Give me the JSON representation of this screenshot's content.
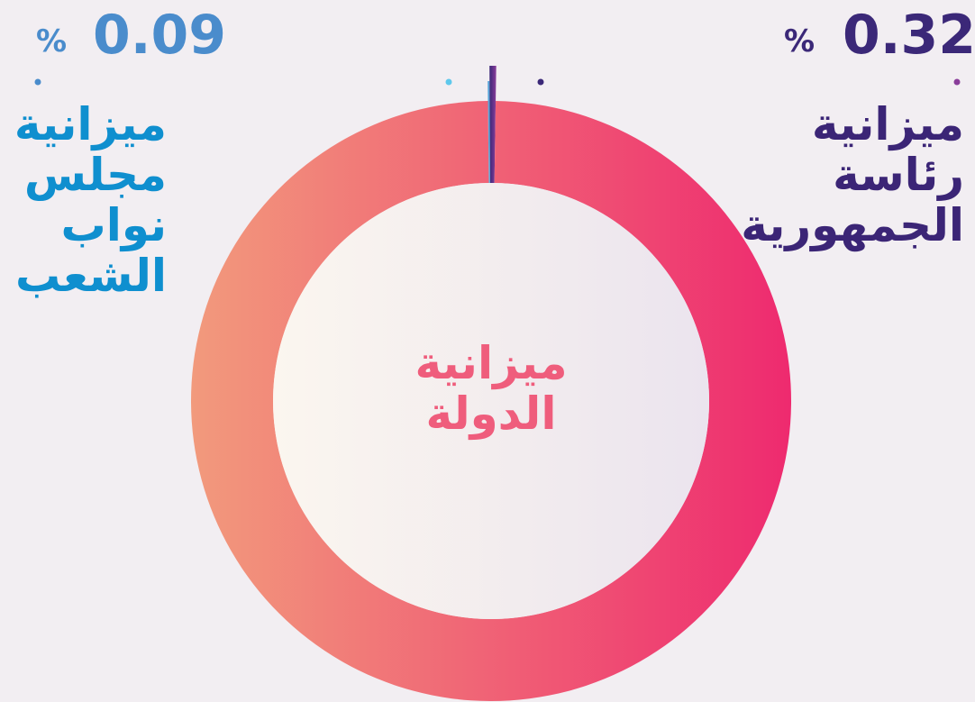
{
  "chart_data": {
    "type": "donut",
    "unit": "%",
    "categories": [
      "ميزانية مجلس نواب الشعب",
      "ميزانية رئاسة الجمهورية",
      "ميزانية الدولة"
    ],
    "values": [
      0.09,
      0.32,
      99.59
    ],
    "value_labels": [
      "0.09",
      "0.32",
      null
    ],
    "colors": [
      "#5ab4e0",
      "#3b2878",
      "#ef4f78"
    ]
  }
}
